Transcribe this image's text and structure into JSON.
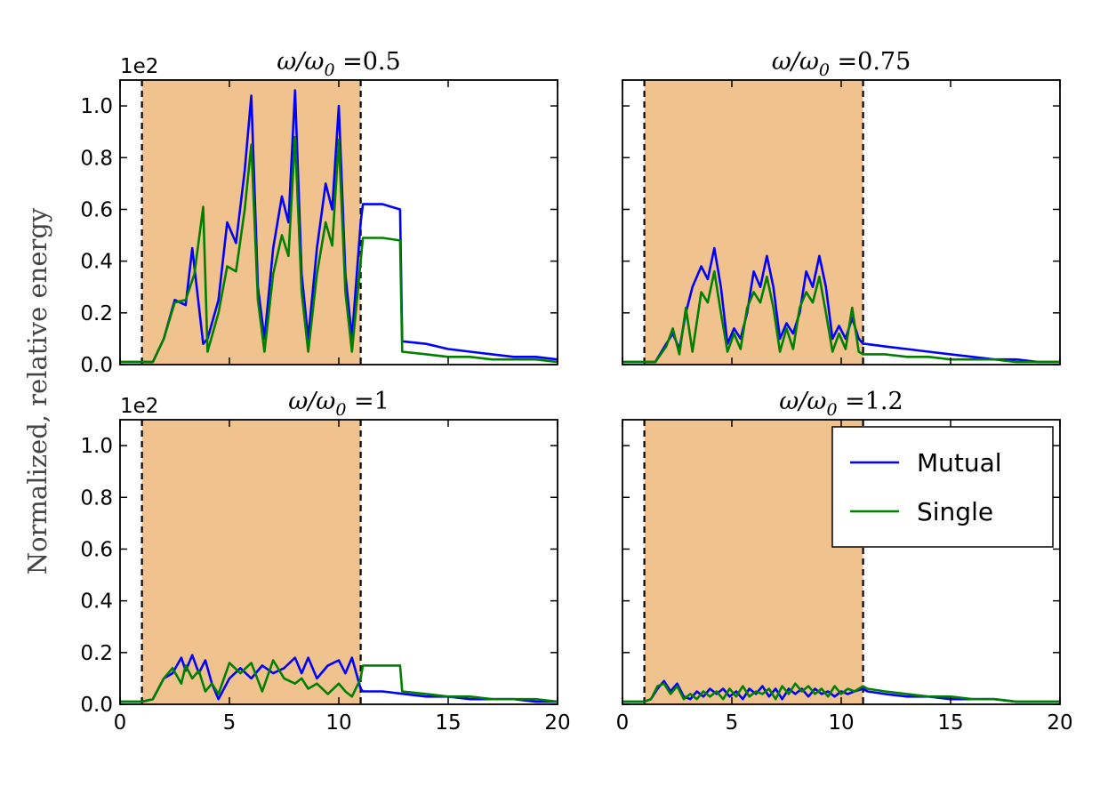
{
  "chart_data": {
    "type": "line",
    "ylabel": "Normalized, relative energy",
    "y_multiplier_label": "1e2",
    "xlim": [
      0,
      20
    ],
    "ylim": [
      0,
      1.1
    ],
    "xticks": [
      "0",
      "5",
      "10",
      "15",
      "20"
    ],
    "yticks": [
      "0.0",
      "0.2",
      "0.4",
      "0.6",
      "0.8",
      "1.0"
    ],
    "shaded_region": [
      1,
      11
    ],
    "shade_color": "#f0c38e",
    "grid": false,
    "legend": {
      "position": "upper-right",
      "panel": 3,
      "entries": [
        "Mutual",
        "Single"
      ]
    },
    "series_colors": {
      "Mutual": "#0000ff",
      "Single": "#007f00"
    },
    "panels": [
      {
        "title_var": "ω/ω",
        "title_sub": "0",
        "title_value": " =0.5",
        "series": [
          {
            "name": "Mutual",
            "x": [
              0,
              1,
              1.5,
              2.0,
              2.5,
              3.0,
              3.3,
              3.8,
              4.0,
              4.5,
              4.9,
              5.3,
              5.7,
              6.0,
              6.3,
              6.6,
              7.0,
              7.4,
              7.7,
              8.0,
              8.3,
              8.6,
              9.0,
              9.4,
              9.7,
              10.0,
              10.3,
              10.6,
              11.0,
              11.1,
              12,
              12.8,
              12.9,
              14,
              15,
              16,
              17,
              18,
              19,
              20
            ],
            "y": [
              0.01,
              0.01,
              0.01,
              0.1,
              0.25,
              0.23,
              0.45,
              0.08,
              0.1,
              0.25,
              0.55,
              0.47,
              0.75,
              1.04,
              0.3,
              0.1,
              0.45,
              0.65,
              0.55,
              1.06,
              0.35,
              0.1,
              0.45,
              0.7,
              0.6,
              1.0,
              0.35,
              0.1,
              0.55,
              0.62,
              0.62,
              0.6,
              0.09,
              0.08,
              0.06,
              0.05,
              0.04,
              0.03,
              0.03,
              0.02
            ]
          },
          {
            "name": "Single",
            "x": [
              0,
              1,
              1.5,
              2.0,
              2.5,
              3.0,
              3.4,
              3.8,
              4.0,
              4.5,
              4.9,
              5.3,
              5.7,
              6.0,
              6.3,
              6.6,
              7.0,
              7.4,
              7.7,
              8.0,
              8.3,
              8.6,
              9.0,
              9.4,
              9.7,
              10.0,
              10.3,
              10.6,
              11.0,
              11.1,
              12,
              12.8,
              12.9,
              14,
              15,
              16,
              17,
              18,
              19,
              20
            ],
            "y": [
              0.01,
              0.01,
              0.01,
              0.1,
              0.24,
              0.25,
              0.35,
              0.61,
              0.05,
              0.2,
              0.38,
              0.36,
              0.6,
              0.85,
              0.25,
              0.05,
              0.35,
              0.5,
              0.42,
              0.88,
              0.28,
              0.05,
              0.35,
              0.55,
              0.46,
              0.87,
              0.28,
              0.05,
              0.4,
              0.49,
              0.49,
              0.48,
              0.05,
              0.04,
              0.03,
              0.03,
              0.02,
              0.02,
              0.02,
              0.01
            ]
          }
        ]
      },
      {
        "title_var": "ω/ω",
        "title_sub": "0",
        "title_value": " =0.75",
        "series": [
          {
            "name": "Mutual",
            "x": [
              0,
              1,
              1.5,
              2.0,
              2.3,
              2.6,
              2.9,
              3.2,
              3.6,
              3.9,
              4.2,
              4.5,
              4.8,
              5.1,
              5.4,
              5.7,
              6.0,
              6.3,
              6.6,
              6.9,
              7.2,
              7.5,
              7.8,
              8.1,
              8.4,
              8.7,
              9.0,
              9.3,
              9.6,
              9.9,
              10.2,
              10.5,
              10.8,
              11.0,
              11.1,
              12,
              13,
              14,
              15,
              16,
              17,
              18,
              19,
              20
            ],
            "y": [
              0.01,
              0.01,
              0.01,
              0.08,
              0.12,
              0.06,
              0.2,
              0.3,
              0.38,
              0.33,
              0.45,
              0.3,
              0.08,
              0.14,
              0.1,
              0.2,
              0.36,
              0.3,
              0.42,
              0.3,
              0.1,
              0.16,
              0.12,
              0.2,
              0.36,
              0.3,
              0.42,
              0.3,
              0.1,
              0.15,
              0.1,
              0.18,
              0.1,
              0.08,
              0.08,
              0.07,
              0.06,
              0.05,
              0.04,
              0.03,
              0.02,
              0.02,
              0.01,
              0.01
            ]
          },
          {
            "name": "Single",
            "x": [
              0,
              1,
              1.5,
              2.0,
              2.3,
              2.6,
              2.9,
              3.2,
              3.6,
              3.9,
              4.2,
              4.5,
              4.8,
              5.1,
              5.4,
              5.7,
              6.0,
              6.3,
              6.6,
              6.9,
              7.2,
              7.5,
              7.8,
              8.1,
              8.4,
              8.7,
              9.0,
              9.3,
              9.6,
              9.9,
              10.2,
              10.5,
              10.8,
              11.0,
              11.1,
              12,
              13,
              14,
              15,
              16,
              17,
              18,
              19,
              20
            ],
            "y": [
              0.01,
              0.01,
              0.01,
              0.07,
              0.14,
              0.04,
              0.22,
              0.05,
              0.28,
              0.24,
              0.36,
              0.2,
              0.05,
              0.12,
              0.06,
              0.22,
              0.28,
              0.24,
              0.34,
              0.22,
              0.05,
              0.14,
              0.06,
              0.22,
              0.28,
              0.24,
              0.34,
              0.2,
              0.05,
              0.12,
              0.06,
              0.22,
              0.05,
              0.04,
              0.04,
              0.04,
              0.03,
              0.03,
              0.02,
              0.02,
              0.02,
              0.01,
              0.01,
              0.01
            ]
          }
        ]
      },
      {
        "title_var": "ω/ω",
        "title_sub": "0",
        "title_value": " =1",
        "series": [
          {
            "name": "Mutual",
            "x": [
              0,
              1,
              1.5,
              2.0,
              2.4,
              2.8,
              3.0,
              3.3,
              3.6,
              3.9,
              4.2,
              4.5,
              5.0,
              5.5,
              6.0,
              6.5,
              7.0,
              7.5,
              8.0,
              8.3,
              8.6,
              9.0,
              9.5,
              10.0,
              10.3,
              10.6,
              11.0,
              11.1,
              12,
              13,
              14,
              15,
              16,
              17,
              18,
              19,
              20
            ],
            "y": [
              0.01,
              0.01,
              0.02,
              0.1,
              0.12,
              0.18,
              0.13,
              0.19,
              0.12,
              0.17,
              0.08,
              0.02,
              0.1,
              0.14,
              0.1,
              0.15,
              0.12,
              0.14,
              0.18,
              0.12,
              0.18,
              0.1,
              0.15,
              0.17,
              0.12,
              0.18,
              0.06,
              0.05,
              0.05,
              0.04,
              0.03,
              0.03,
              0.02,
              0.02,
              0.02,
              0.01,
              0.01
            ]
          },
          {
            "name": "Single",
            "x": [
              0,
              1,
              1.5,
              2.0,
              2.4,
              2.8,
              3.0,
              3.3,
              3.6,
              3.9,
              4.2,
              4.5,
              5.0,
              5.5,
              6.0,
              6.5,
              7.0,
              7.5,
              8.0,
              8.3,
              8.6,
              9.0,
              9.5,
              10.0,
              10.3,
              10.6,
              11.0,
              11.1,
              12,
              12.8,
              12.9,
              14,
              15,
              16,
              17,
              18,
              19,
              20
            ],
            "y": [
              0.01,
              0.01,
              0.02,
              0.1,
              0.14,
              0.08,
              0.15,
              0.1,
              0.13,
              0.05,
              0.08,
              0.04,
              0.16,
              0.12,
              0.16,
              0.05,
              0.17,
              0.1,
              0.08,
              0.1,
              0.06,
              0.08,
              0.04,
              0.08,
              0.05,
              0.03,
              0.1,
              0.15,
              0.15,
              0.15,
              0.05,
              0.04,
              0.03,
              0.03,
              0.02,
              0.02,
              0.02,
              0.01
            ]
          }
        ]
      },
      {
        "title_var": "ω/ω",
        "title_sub": "0",
        "title_value": " =1.2",
        "series": [
          {
            "name": "Mutual",
            "x": [
              0,
              1,
              1.3,
              1.6,
              1.9,
              2.2,
              2.5,
              2.8,
              3.1,
              3.4,
              3.7,
              4.0,
              4.3,
              4.6,
              4.9,
              5.2,
              5.5,
              5.8,
              6.1,
              6.4,
              6.7,
              7.0,
              7.3,
              7.6,
              7.9,
              8.2,
              8.5,
              8.8,
              9.1,
              9.4,
              9.7,
              10.0,
              10.3,
              10.6,
              11.0,
              11.2,
              12,
              13,
              14,
              15,
              16,
              17,
              18,
              19,
              20
            ],
            "y": [
              0.01,
              0.01,
              0.02,
              0.06,
              0.09,
              0.05,
              0.08,
              0.03,
              0.02,
              0.05,
              0.03,
              0.06,
              0.04,
              0.06,
              0.03,
              0.05,
              0.02,
              0.06,
              0.04,
              0.07,
              0.03,
              0.06,
              0.02,
              0.06,
              0.04,
              0.06,
              0.03,
              0.06,
              0.04,
              0.05,
              0.03,
              0.05,
              0.04,
              0.05,
              0.06,
              0.05,
              0.04,
              0.03,
              0.03,
              0.02,
              0.02,
              0.02,
              0.01,
              0.01,
              0.01
            ]
          },
          {
            "name": "Single",
            "x": [
              0,
              1,
              1.3,
              1.6,
              1.9,
              2.2,
              2.5,
              2.8,
              3.1,
              3.4,
              3.7,
              4.0,
              4.3,
              4.6,
              4.9,
              5.2,
              5.5,
              5.8,
              6.1,
              6.4,
              6.7,
              7.0,
              7.3,
              7.6,
              7.9,
              8.2,
              8.5,
              8.8,
              9.1,
              9.4,
              9.7,
              10.0,
              10.3,
              10.6,
              11.0,
              11.2,
              12,
              13,
              14,
              15,
              16,
              17,
              18,
              19,
              20
            ],
            "y": [
              0.01,
              0.01,
              0.02,
              0.07,
              0.08,
              0.04,
              0.07,
              0.02,
              0.04,
              0.02,
              0.05,
              0.03,
              0.05,
              0.02,
              0.06,
              0.03,
              0.07,
              0.03,
              0.05,
              0.04,
              0.06,
              0.02,
              0.07,
              0.04,
              0.08,
              0.05,
              0.07,
              0.04,
              0.06,
              0.03,
              0.07,
              0.04,
              0.06,
              0.05,
              0.07,
              0.06,
              0.05,
              0.04,
              0.03,
              0.03,
              0.02,
              0.02,
              0.01,
              0.01,
              0.01
            ]
          }
        ]
      }
    ]
  }
}
